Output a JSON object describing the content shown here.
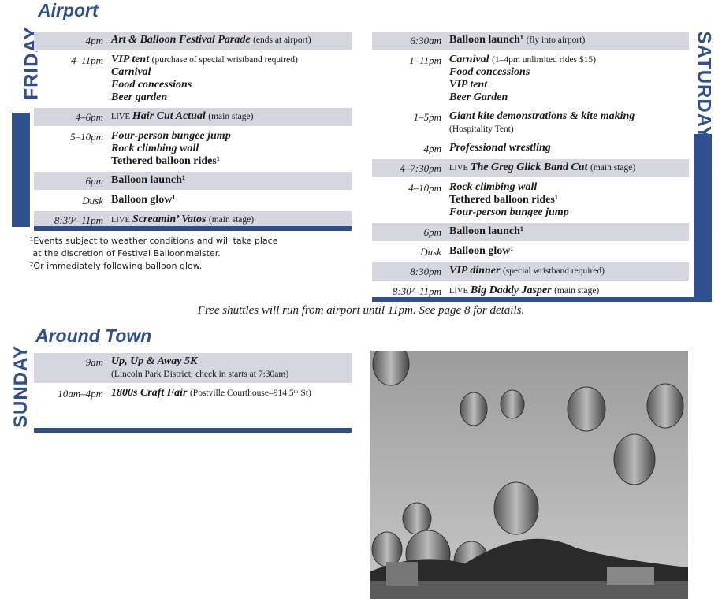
{
  "airport": {
    "title": "Airport",
    "friday": {
      "label": "FRIDAY",
      "rows": [
        {
          "time": "4pm",
          "shaded": true,
          "lines": [
            {
              "name": "Art & Balloon Festival Parade",
              "note": "(ends at airport)"
            }
          ]
        },
        {
          "time": "4–11pm",
          "lines": [
            {
              "name": "VIP tent",
              "note": "(purchase of special wristband required)"
            },
            {
              "name": "Carnival"
            },
            {
              "name": "Food concessions"
            },
            {
              "name": "Beer garden"
            }
          ]
        },
        {
          "time": "4–6pm",
          "shaded": true,
          "lines": [
            {
              "prefix": "LIVE",
              "name": "Hair Cut Actual",
              "note": "(main stage)"
            }
          ]
        },
        {
          "time": "5–10pm",
          "lines": [
            {
              "name": "Four-person bungee jump"
            },
            {
              "name": "Rock climbing wall"
            },
            {
              "name": "Tethered balloon rides¹",
              "roman": true
            }
          ]
        },
        {
          "time": "6pm",
          "shaded": true,
          "lines": [
            {
              "name": "Balloon launch¹",
              "roman": true
            }
          ]
        },
        {
          "time": "Dusk",
          "lines": [
            {
              "name": "Balloon glow¹",
              "roman": true
            }
          ]
        },
        {
          "time": "8:30²–11pm",
          "shaded": true,
          "lines": [
            {
              "prefix": "LIVE",
              "name": "Screamin’ Vatos",
              "note": "(main stage)"
            }
          ]
        }
      ]
    },
    "footnotes": [
      "¹Events subject to weather conditions and will take place",
      " at the discretion of Festival Balloonmeister.",
      "²Or immediately following balloon glow."
    ],
    "saturday": {
      "label": "SATURDAY",
      "rows": [
        {
          "time": "6:30am",
          "shaded": true,
          "lines": [
            {
              "name": "Balloon launch¹",
              "roman": true,
              "note": "(fly into airport)"
            }
          ]
        },
        {
          "time": "1–11pm",
          "lines": [
            {
              "name": "Carnival",
              "note": "(1–4pm unlimited rides $15)"
            },
            {
              "name": "Food concessions"
            },
            {
              "name": "VIP tent"
            },
            {
              "name": "Beer Garden"
            }
          ]
        },
        {
          "time": "1–5pm",
          "lines": [
            {
              "name": "Giant kite demonstrations & kite making"
            },
            {
              "note": "(Hospitality Tent)"
            }
          ]
        },
        {
          "time": "4pm",
          "lines": [
            {
              "name": "Professional wrestling"
            }
          ]
        },
        {
          "time": "4–7:30pm",
          "shaded": true,
          "lines": [
            {
              "prefix": "LIVE",
              "name": "The Greg Glick Band Cut",
              "note": "(main stage)"
            }
          ]
        },
        {
          "time": "4–10pm",
          "lines": [
            {
              "name": "Rock climbing wall"
            },
            {
              "name": "Tethered balloon rides¹",
              "roman": true
            },
            {
              "name": "Four-person bungee jump"
            }
          ]
        },
        {
          "time": "6pm",
          "shaded": true,
          "lines": [
            {
              "name": "Balloon launch¹",
              "roman": true
            }
          ]
        },
        {
          "time": "Dusk",
          "lines": [
            {
              "name": "Balloon glow¹",
              "roman": true
            }
          ]
        },
        {
          "time": "8:30pm",
          "shaded": true,
          "lines": [
            {
              "name": "VIP dinner",
              "note": "(special wristband required)"
            }
          ]
        },
        {
          "time": "8:30²–11pm",
          "lines": [
            {
              "prefix": "LIVE",
              "name": "Big Daddy Jasper",
              "note": "(main stage)"
            }
          ]
        }
      ]
    },
    "shuttle_note": "Free shuttles will run from airport until 11pm. See page 8 for details."
  },
  "around_town": {
    "title": "Around Town",
    "sunday": {
      "label": "SUNDAY",
      "rows": [
        {
          "time": "9am",
          "shaded": true,
          "lines": [
            {
              "name": "Up, Up & Away 5K"
            },
            {
              "note": "(Lincoln Park District; check in starts at 7:30am)"
            }
          ]
        },
        {
          "time": "10am–4pm",
          "lines": [
            {
              "name": "1800s Craft Fair",
              "note": "(Postville Courthouse–914 5ᵗʰ St)"
            }
          ]
        }
      ]
    }
  }
}
